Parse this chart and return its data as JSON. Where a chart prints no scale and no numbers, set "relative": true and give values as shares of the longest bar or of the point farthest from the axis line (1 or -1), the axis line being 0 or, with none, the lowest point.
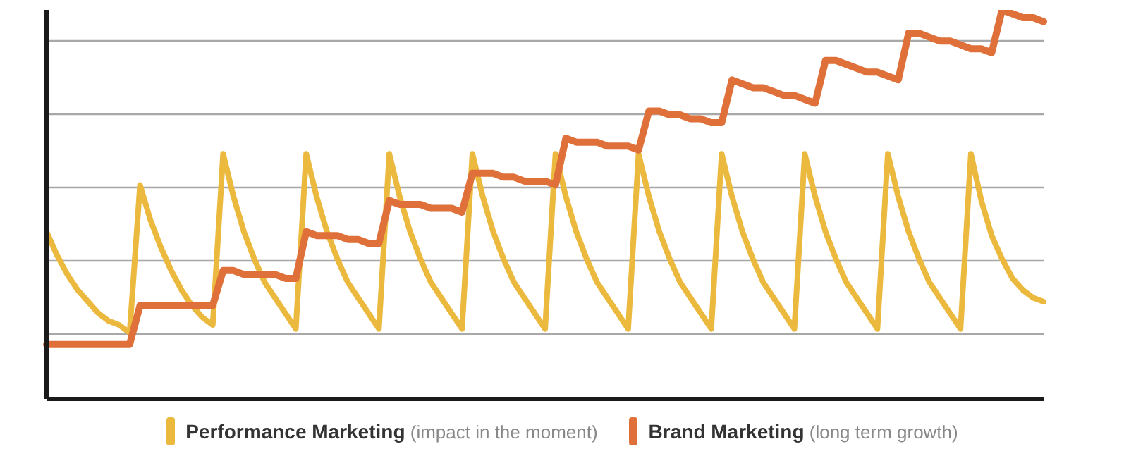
{
  "chart_data": {
    "type": "line",
    "relative": true,
    "grid": "y",
    "legend": "bottom",
    "marker": "none",
    "line_style": "solid",
    "categories": [
      null,
      null,
      null,
      null,
      null,
      null,
      null,
      null,
      null,
      null,
      null,
      null,
      null,
      null,
      null,
      null,
      null,
      null,
      null,
      null,
      null,
      null,
      null,
      null,
      null,
      null,
      null,
      null,
      null,
      null,
      null,
      null,
      null,
      null,
      null,
      null,
      null,
      null,
      null,
      null,
      null,
      null,
      null,
      null,
      null,
      null,
      null,
      null,
      null,
      null,
      null,
      null,
      null,
      null,
      null,
      null,
      null,
      null,
      null,
      null,
      null,
      null,
      null,
      null,
      null,
      null,
      null,
      null,
      null,
      null,
      null,
      null,
      null,
      null,
      null,
      null,
      null,
      null,
      null,
      null,
      null,
      null,
      null,
      null,
      null,
      null,
      null,
      null,
      null,
      null,
      null,
      null,
      null,
      null,
      null,
      null,
      null
    ],
    "series": [
      {
        "name": "Performance Marketing (impact in the moment)",
        "color": "#ecb93f",
        "values": [
          0.43,
          0.37,
          0.32,
          0.28,
          0.25,
          0.22,
          0.2,
          0.19,
          0.17,
          0.55,
          0.46,
          0.39,
          0.33,
          0.28,
          0.24,
          0.21,
          0.19,
          0.63,
          0.52,
          0.43,
          0.36,
          0.3,
          0.26,
          0.22,
          0.18,
          0.63,
          0.52,
          0.43,
          0.36,
          0.3,
          0.26,
          0.22,
          0.18,
          0.63,
          0.52,
          0.43,
          0.36,
          0.3,
          0.26,
          0.22,
          0.18,
          0.63,
          0.52,
          0.43,
          0.36,
          0.3,
          0.26,
          0.22,
          0.18,
          0.63,
          0.52,
          0.43,
          0.36,
          0.3,
          0.26,
          0.22,
          0.18,
          0.63,
          0.52,
          0.43,
          0.36,
          0.3,
          0.26,
          0.22,
          0.18,
          0.63,
          0.52,
          0.43,
          0.36,
          0.3,
          0.26,
          0.22,
          0.18,
          0.63,
          0.52,
          0.43,
          0.36,
          0.3,
          0.26,
          0.22,
          0.18,
          0.63,
          0.52,
          0.43,
          0.36,
          0.3,
          0.26,
          0.22,
          0.18,
          0.63,
          0.51,
          0.42,
          0.36,
          0.31,
          0.28,
          0.26,
          0.25
        ]
      },
      {
        "name": "Brand Marketing (long term growth)",
        "color": "#e0703a",
        "values": [
          0.14,
          0.14,
          0.14,
          0.14,
          0.14,
          0.14,
          0.14,
          0.14,
          0.14,
          0.24,
          0.24,
          0.24,
          0.24,
          0.24,
          0.24,
          0.24,
          0.24,
          0.33,
          0.33,
          0.32,
          0.32,
          0.32,
          0.32,
          0.31,
          0.31,
          0.43,
          0.42,
          0.42,
          0.42,
          0.41,
          0.41,
          0.4,
          0.4,
          0.51,
          0.5,
          0.5,
          0.5,
          0.49,
          0.49,
          0.49,
          0.48,
          0.58,
          0.58,
          0.58,
          0.57,
          0.57,
          0.56,
          0.56,
          0.56,
          0.55,
          0.67,
          0.66,
          0.66,
          0.66,
          0.65,
          0.65,
          0.65,
          0.64,
          0.74,
          0.74,
          0.73,
          0.73,
          0.72,
          0.72,
          0.71,
          0.71,
          0.82,
          0.81,
          0.8,
          0.8,
          0.79,
          0.78,
          0.78,
          0.77,
          0.76,
          0.87,
          0.87,
          0.86,
          0.85,
          0.84,
          0.84,
          0.83,
          0.82,
          0.94,
          0.94,
          0.93,
          0.92,
          0.92,
          0.91,
          0.9,
          0.9,
          0.89,
          1,
          0.99,
          0.98,
          0.98,
          0.97
        ]
      }
    ]
  }
}
